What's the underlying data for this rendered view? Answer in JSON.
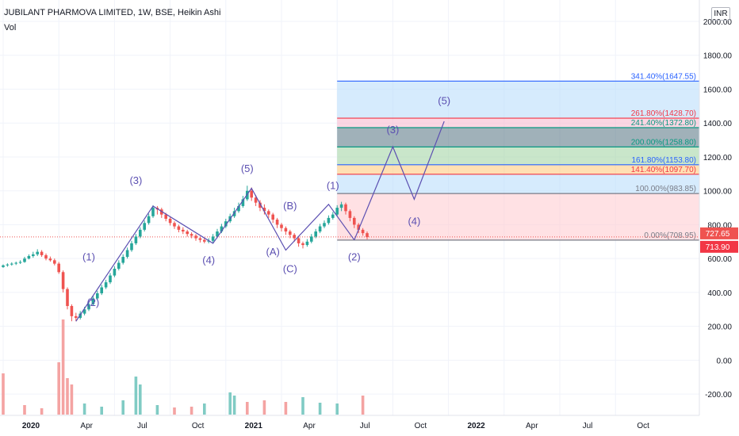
{
  "header": {
    "title": "JUBILANT PHARMOVA LIMITED, 1W, BSE, Heikin Ashi",
    "indicator": "Vol",
    "currency": "INR"
  },
  "colors": {
    "up": "#26a69a",
    "down": "#ef5350",
    "vol_up": "#80cbc4",
    "vol_down": "#f4a3a2",
    "wave": "#5b4fb1",
    "grid": "#f0f3fa",
    "price_line": "#ef5350"
  },
  "chart_data": {
    "type": "candlestick",
    "price_axis": {
      "ticks": [
        "2000.00",
        "1800.00",
        "1600.00",
        "1400.00",
        "1200.00",
        "1000.00",
        "800.00",
        "600.00",
        "400.00",
        "200.00",
        "0.00",
        "-200.00"
      ],
      "range": [
        -250,
        2080
      ]
    },
    "time_axis": {
      "labels": [
        "2020",
        "Apr",
        "Jul",
        "Oct",
        "2021",
        "Apr",
        "Jul",
        "Oct",
        "2022",
        "Apr",
        "Jul",
        "Oct"
      ],
      "label_bar_index": [
        0,
        13,
        26,
        39,
        52,
        65,
        78,
        91,
        104,
        117,
        130,
        143
      ]
    },
    "price_labels": [
      {
        "value": 727.65,
        "text": "727.65",
        "color": "#ef5350"
      },
      {
        "value": 713.9,
        "text": "713.90",
        "color": "#f23645"
      }
    ],
    "fib_levels": [
      {
        "ratio": "341.40%",
        "price": 1647.55,
        "label": "341.40%(1647.55)",
        "color": "#2962ff"
      },
      {
        "ratio": "261.80%",
        "price": 1428.7,
        "label": "261.80%(1428.70)",
        "color": "#f23645"
      },
      {
        "ratio": "241.40%",
        "price": 1372.8,
        "label": "241.40%(1372.80)",
        "color": "#089981"
      },
      {
        "ratio": "200.00%",
        "price": 1258.8,
        "label": "200.00%(1258.80)",
        "color": "#089981"
      },
      {
        "ratio": "161.80%",
        "price": 1153.8,
        "label": "161.80%(1153.80)",
        "color": "#2962ff"
      },
      {
        "ratio": "141.40%",
        "price": 1097.7,
        "label": "141.40%(1097.70)",
        "color": "#f23645"
      },
      {
        "ratio": "100.00%",
        "price": 983.85,
        "label": "100.00%(983.85)",
        "color": "#787b86"
      },
      {
        "ratio": "0.00%",
        "price": 708.95,
        "label": "0.00%(708.95)",
        "color": "#787b86"
      }
    ],
    "fib_start_bar": 78,
    "wave_labels": [
      {
        "text": "(1)",
        "bar": 20,
        "price": 590
      },
      {
        "text": "(2)",
        "bar": 21,
        "price": 320
      },
      {
        "text": "(3)",
        "bar": 31,
        "price": 1040
      },
      {
        "text": "(4)",
        "bar": 48,
        "price": 570
      },
      {
        "text": "(5)",
        "bar": 57,
        "price": 1110
      },
      {
        "text": "(B)",
        "bar": 67,
        "price": 890
      },
      {
        "text": "(A)",
        "bar": 63,
        "price": 620
      },
      {
        "text": "(C)",
        "bar": 67,
        "price": 520
      },
      {
        "text": "(1)",
        "bar": 77,
        "price": 1010
      },
      {
        "text": "(2)",
        "bar": 82,
        "price": 590
      },
      {
        "text": "(3)",
        "bar": 91,
        "price": 1340
      },
      {
        "text": "(4)",
        "bar": 96,
        "price": 800
      },
      {
        "text": "(5)",
        "bar": 103,
        "price": 1510
      }
    ],
    "wave_lines": [
      [
        [
          17,
          230
        ],
        [
          35,
          910
        ],
        [
          49,
          690
        ],
        [
          58,
          1015
        ],
        [
          66,
          650
        ],
        [
          76,
          920
        ],
        [
          82,
          710
        ]
      ],
      [
        [
          82,
          710
        ],
        [
          91,
          1260
        ],
        [
          96,
          950
        ],
        [
          103,
          1410
        ]
      ]
    ],
    "candles": [
      [
        550,
        560,
        565,
        545
      ],
      [
        560,
        565,
        572,
        552
      ],
      [
        565,
        570,
        578,
        558
      ],
      [
        570,
        575,
        582,
        562
      ],
      [
        575,
        580,
        590,
        568
      ],
      [
        580,
        600,
        610,
        575
      ],
      [
        600,
        615,
        625,
        595
      ],
      [
        615,
        625,
        640,
        605
      ],
      [
        625,
        640,
        655,
        615
      ],
      [
        640,
        620,
        650,
        610
      ],
      [
        620,
        600,
        630,
        590
      ],
      [
        600,
        590,
        612,
        582
      ],
      [
        590,
        570,
        600,
        560
      ],
      [
        570,
        520,
        580,
        510
      ],
      [
        520,
        420,
        530,
        400
      ],
      [
        420,
        320,
        430,
        300
      ],
      [
        320,
        260,
        330,
        230
      ],
      [
        260,
        250,
        280,
        230
      ],
      [
        250,
        275,
        290,
        240
      ],
      [
        275,
        300,
        315,
        265
      ],
      [
        300,
        330,
        345,
        290
      ],
      [
        330,
        365,
        380,
        320
      ],
      [
        365,
        395,
        410,
        355
      ],
      [
        395,
        430,
        445,
        385
      ],
      [
        430,
        460,
        475,
        420
      ],
      [
        460,
        500,
        515,
        450
      ],
      [
        500,
        540,
        555,
        490
      ],
      [
        540,
        575,
        590,
        530
      ],
      [
        575,
        610,
        625,
        565
      ],
      [
        610,
        650,
        665,
        600
      ],
      [
        650,
        690,
        705,
        640
      ],
      [
        690,
        730,
        745,
        680
      ],
      [
        730,
        770,
        785,
        720
      ],
      [
        770,
        810,
        825,
        760
      ],
      [
        810,
        850,
        865,
        800
      ],
      [
        850,
        900,
        915,
        840
      ],
      [
        900,
        890,
        910,
        860
      ],
      [
        890,
        860,
        900,
        840
      ],
      [
        860,
        835,
        870,
        820
      ],
      [
        835,
        810,
        845,
        795
      ],
      [
        810,
        790,
        820,
        775
      ],
      [
        790,
        770,
        800,
        755
      ],
      [
        770,
        760,
        785,
        745
      ],
      [
        760,
        745,
        770,
        730
      ],
      [
        745,
        735,
        755,
        720
      ],
      [
        735,
        720,
        745,
        705
      ],
      [
        720,
        710,
        730,
        695
      ],
      [
        710,
        700,
        720,
        690
      ],
      [
        700,
        705,
        720,
        690
      ],
      [
        705,
        730,
        745,
        695
      ],
      [
        730,
        760,
        775,
        720
      ],
      [
        760,
        790,
        805,
        750
      ],
      [
        790,
        820,
        835,
        780
      ],
      [
        820,
        850,
        865,
        810
      ],
      [
        850,
        880,
        900,
        840
      ],
      [
        880,
        910,
        930,
        870
      ],
      [
        910,
        950,
        970,
        900
      ],
      [
        950,
        1000,
        1030,
        940
      ],
      [
        1000,
        960,
        1020,
        940
      ],
      [
        960,
        930,
        975,
        910
      ],
      [
        930,
        900,
        945,
        880
      ],
      [
        900,
        880,
        920,
        860
      ],
      [
        880,
        860,
        890,
        840
      ],
      [
        860,
        830,
        870,
        810
      ],
      [
        830,
        800,
        840,
        780
      ],
      [
        800,
        780,
        810,
        760
      ],
      [
        780,
        760,
        790,
        740
      ],
      [
        760,
        740,
        770,
        720
      ],
      [
        740,
        720,
        750,
        700
      ],
      [
        720,
        690,
        730,
        670
      ],
      [
        690,
        680,
        700,
        660
      ],
      [
        680,
        700,
        715,
        670
      ],
      [
        700,
        730,
        745,
        690
      ],
      [
        730,
        760,
        775,
        720
      ],
      [
        760,
        790,
        805,
        750
      ],
      [
        790,
        810,
        825,
        780
      ],
      [
        810,
        840,
        855,
        800
      ],
      [
        840,
        860,
        875,
        830
      ],
      [
        860,
        900,
        915,
        850
      ],
      [
        900,
        920,
        935,
        880
      ],
      [
        920,
        880,
        930,
        860
      ],
      [
        880,
        840,
        890,
        820
      ],
      [
        840,
        800,
        850,
        780
      ],
      [
        800,
        770,
        810,
        750
      ],
      [
        770,
        750,
        780,
        735
      ],
      [
        750,
        727,
        760,
        714
      ]
    ],
    "volumes": [
      [
        0,
        260,
        "down"
      ],
      [
        5,
        60,
        "down"
      ],
      [
        9,
        40,
        "down"
      ],
      [
        13,
        330,
        "down"
      ],
      [
        14,
        600,
        "down"
      ],
      [
        15,
        230,
        "down"
      ],
      [
        16,
        190,
        "down"
      ],
      [
        19,
        70,
        "up"
      ],
      [
        23,
        50,
        "up"
      ],
      [
        28,
        90,
        "up"
      ],
      [
        31,
        240,
        "up"
      ],
      [
        32,
        190,
        "up"
      ],
      [
        36,
        60,
        "up"
      ],
      [
        40,
        45,
        "down"
      ],
      [
        44,
        50,
        "down"
      ],
      [
        47,
        70,
        "up"
      ],
      [
        53,
        140,
        "up"
      ],
      [
        54,
        120,
        "up"
      ],
      [
        57,
        80,
        "down"
      ],
      [
        61,
        90,
        "down"
      ],
      [
        66,
        80,
        "down"
      ],
      [
        70,
        110,
        "up"
      ],
      [
        74,
        75,
        "up"
      ],
      [
        78,
        70,
        "up"
      ],
      [
        84,
        120,
        "down"
      ]
    ],
    "title": "JUBILANT PHARMOVA LIMITED, 1W, BSE, Heikin Ashi"
  }
}
